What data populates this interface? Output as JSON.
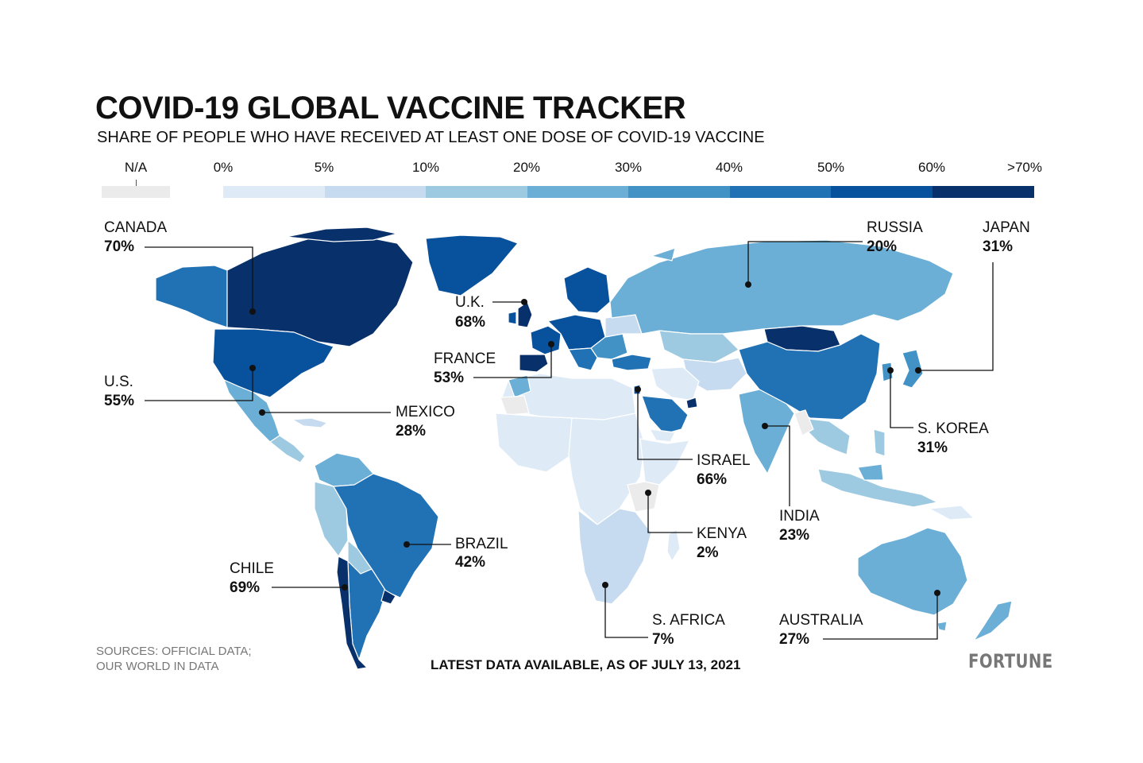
{
  "header": {
    "title": "COVID-19 GLOBAL VACCINE TRACKER",
    "subtitle": "SHARE OF PEOPLE WHO HAVE RECEIVED AT LEAST ONE DOSE OF COVID-19 VACCINE"
  },
  "legend": {
    "na_label": "N/A",
    "na_color": "#ebebeb",
    "bins": [
      {
        "label": "0%",
        "color": "#deebf7"
      },
      {
        "label": "5%",
        "color": "#c6dbef"
      },
      {
        "label": "10%",
        "color": "#9ecae1"
      },
      {
        "label": "20%",
        "color": "#6baed6"
      },
      {
        "label": "30%",
        "color": "#4292c6"
      },
      {
        "label": "40%",
        "color": "#2171b5"
      },
      {
        "label": "50%",
        "color": "#08519c"
      },
      {
        "label": "60%",
        "color": "#08306b"
      }
    ],
    "max_label": ">70%"
  },
  "callouts": [
    {
      "name": "CANADA",
      "value": "70%"
    },
    {
      "name": "U.S.",
      "value": "55%"
    },
    {
      "name": "MEXICO",
      "value": "28%"
    },
    {
      "name": "BRAZIL",
      "value": "42%"
    },
    {
      "name": "CHILE",
      "value": "69%"
    },
    {
      "name": "U.K.",
      "value": "68%"
    },
    {
      "name": "FRANCE",
      "value": "53%"
    },
    {
      "name": "RUSSIA",
      "value": "20%"
    },
    {
      "name": "JAPAN",
      "value": "31%"
    },
    {
      "name": "S. KOREA",
      "value": "31%"
    },
    {
      "name": "ISRAEL",
      "value": "66%"
    },
    {
      "name": "INDIA",
      "value": "23%"
    },
    {
      "name": "KENYA",
      "value": "2%"
    },
    {
      "name": "S. AFRICA",
      "value": "7%"
    },
    {
      "name": "AUSTRALIA",
      "value": "27%"
    }
  ],
  "footer": {
    "sources_line1": "SOURCES: OFFICIAL DATA;",
    "sources_line2": "OUR WORLD IN DATA",
    "note": "LATEST DATA AVAILABLE, AS OF JULY 13, 2021",
    "brand": "FORTUNE"
  }
}
